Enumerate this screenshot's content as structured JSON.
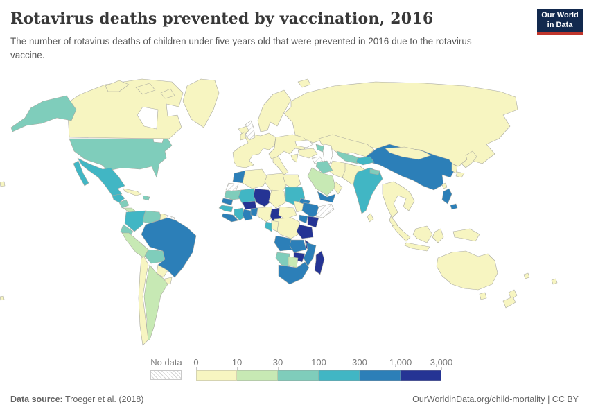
{
  "header": {
    "title": "Rotavirus deaths prevented by vaccination, 2016",
    "subtitle": "The number of rotavirus deaths of children under five years old that were prevented in 2016 due to the rotavirus vaccine.",
    "logo": {
      "line1": "Our World",
      "line2": "in Data",
      "bg": "#12294e",
      "accent": "#c0362c"
    }
  },
  "legend": {
    "no_data_label": "No data",
    "tick_labels": [
      "0",
      "10",
      "30",
      "100",
      "300",
      "1,000",
      "3,000"
    ]
  },
  "palette": {
    "bins": [
      "#f7f5c1",
      "#c7e9b4",
      "#7fcdbb",
      "#41b6c4",
      "#2c7fb8",
      "#253494"
    ],
    "border": "#a9a9a0",
    "no_data_hatch": "#cccccc"
  },
  "footer": {
    "source_label": "Data source:",
    "source_value": " Troeger et al. (2018)",
    "link": "OurWorldinData.org/child-mortality",
    "license": " | CC BY"
  },
  "chart_data": {
    "type": "choropleth-map",
    "title": "Rotavirus deaths prevented by vaccination, 2016",
    "unit": "rotavirus deaths of children under five prevented in 2016",
    "bin_edges": [
      0,
      10,
      30,
      100,
      300,
      1000,
      3000
    ],
    "bin_ranges": [
      "0-10",
      "10-30",
      "30-100",
      "100-300",
      "300-1000",
      "1000-3000"
    ],
    "countries": {
      "Canada": "0-10",
      "Greenland": "0-10",
      "United States": "30-100",
      "Mexico": "100-300",
      "Guatemala": "100-300",
      "Nicaragua": "30-100",
      "Costa Rica": "10-30",
      "Cuba": "0-10",
      "Haiti": "30-100",
      "Colombia": "100-300",
      "Venezuela": "30-100",
      "Guyana": "0-10",
      "Suriname": "no-data",
      "Ecuador": "30-100",
      "Peru": "10-30",
      "Bolivia": "30-100",
      "Brazil": "300-1000",
      "Paraguay": "0-10",
      "Uruguay": "0-10",
      "Argentina": "10-30",
      "Chile": "0-10",
      "Iceland": "0-10",
      "United Kingdom": "no-data",
      "Ireland": "0-10",
      "Norway": "0-10",
      "France": "0-10",
      "Germany": "0-10",
      "Italy": "0-10",
      "Greece": "0-10",
      "Russia": "0-10",
      "Kazakhstan": "0-10",
      "Turkey": "0-10",
      "Azerbaijan": "30-100",
      "Uzbekistan": "30-100",
      "Tajikistan": "100-300",
      "Pakistan": "0-10",
      "Iran": "0-10",
      "Iraq": "30-100",
      "Syria": "no-data",
      "Saudi Arabia": "10-30",
      "Yemen": "300-1000",
      "Oman": "0-10",
      "India": "100-300",
      "Nepal": "30-100",
      "China": "300-1000",
      "Mongolia": "0-10",
      "South Korea": "0-10",
      "Japan": "0-10",
      "Taiwan": "0-10",
      "Philippines": "300-1000",
      "Sri Lanka": "0-10",
      "Myanmar": "0-10",
      "Malaysia": "0-10",
      "Indonesia": "0-10",
      "Papua New Guinea": "0-10",
      "Australia": "0-10",
      "New Zealand": "0-10",
      "Fiji": "0-10",
      "Morocco": "300-1000",
      "Western Sahara": "no-data",
      "Algeria": "0-10",
      "Libya": "0-10",
      "Egypt": "0-10",
      "Mauritania": "30-100",
      "Mali": "100-300",
      "Niger": "1000-3000",
      "Chad": "0-10",
      "Sudan": "100-300",
      "South Sudan": "0-10",
      "Eritrea": "300-1000",
      "Ethiopia": "300-1000",
      "Somalia": "no-data",
      "Senegal": "300-1000",
      "Guinea": "100-300",
      "Liberia": "300-1000",
      "Cote d'Ivoire": "100-300",
      "Ghana": "300-1000",
      "Benin": "300-1000",
      "Burkina Faso": "1000-3000",
      "Nigeria": "0-10",
      "Cameroon": "1000-3000",
      "Central African Republic": "0-10",
      "DR Congo": "0-10",
      "Congo": "0-10",
      "Gabon": "100-300",
      "Uganda": "300-1000",
      "Kenya": "1000-3000",
      "Tanzania": "1000-3000",
      "Angola": "300-1000",
      "Zambia": "300-1000",
      "Malawi": "1000-3000",
      "Mozambique": "300-1000",
      "Zimbabwe": "1000-3000",
      "Namibia": "30-100",
      "Botswana": "10-30",
      "South Africa": "300-1000",
      "Madagascar": "1000-3000"
    }
  }
}
